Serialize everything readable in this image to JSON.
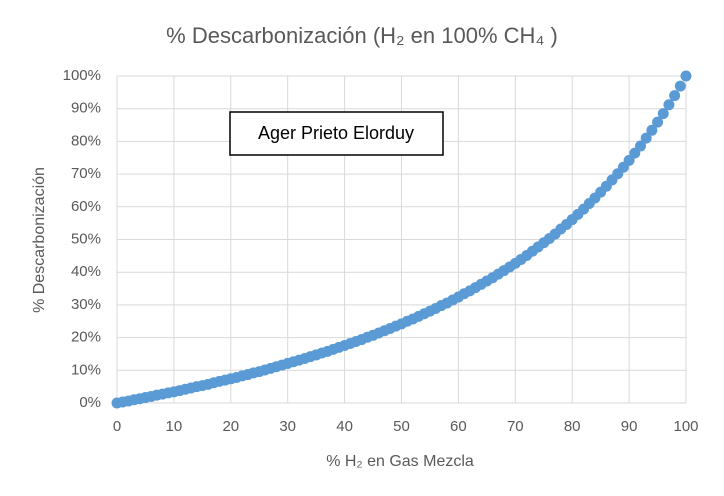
{
  "chart_data": {
    "type": "scatter",
    "title": "% Descarbonización (H₂ en 100% CH₄ )",
    "xlabel": "% H₂ en Gas Mezcla",
    "ylabel": "% Descarbonización",
    "annotation": "Ager Prieto Elorduy",
    "color": "#5b9bd5",
    "grid": true,
    "x": [
      0,
      1,
      2,
      3,
      4,
      5,
      6,
      7,
      8,
      9,
      10,
      11,
      12,
      13,
      14,
      15,
      16,
      17,
      18,
      19,
      20,
      21,
      22,
      23,
      24,
      25,
      26,
      27,
      28,
      29,
      30,
      31,
      32,
      33,
      34,
      35,
      36,
      37,
      38,
      39,
      40,
      41,
      42,
      43,
      44,
      45,
      46,
      47,
      48,
      49,
      50,
      51,
      52,
      53,
      54,
      55,
      56,
      57,
      58,
      59,
      60,
      61,
      62,
      63,
      64,
      65,
      66,
      67,
      68,
      69,
      70,
      71,
      72,
      73,
      74,
      75,
      76,
      77,
      78,
      79,
      80,
      81,
      82,
      83,
      84,
      85,
      86,
      87,
      88,
      89,
      90,
      91,
      92,
      93,
      94,
      95,
      96,
      97,
      98,
      99,
      100
    ],
    "values": [
      0,
      0.3,
      0.6,
      1.0,
      1.3,
      1.7,
      2.0,
      2.4,
      2.7,
      3.1,
      3.4,
      3.8,
      4.2,
      4.6,
      5.0,
      5.3,
      5.7,
      6.2,
      6.6,
      7.0,
      7.4,
      7.8,
      8.3,
      8.7,
      9.2,
      9.6,
      10.1,
      10.6,
      11.1,
      11.6,
      12.1,
      12.6,
      13.1,
      13.6,
      14.2,
      14.7,
      15.3,
      15.8,
      16.4,
      17.0,
      17.6,
      18.2,
      18.8,
      19.4,
      20.1,
      20.7,
      21.4,
      22.1,
      22.8,
      23.5,
      24.2,
      25.0,
      25.7,
      26.5,
      27.3,
      28.1,
      28.9,
      29.8,
      30.6,
      31.5,
      32.4,
      33.4,
      34.3,
      35.3,
      36.3,
      37.3,
      38.3,
      39.4,
      40.5,
      41.6,
      42.7,
      43.9,
      45.1,
      46.4,
      47.7,
      49.0,
      50.3,
      51.7,
      53.2,
      54.6,
      56.1,
      57.7,
      59.3,
      61.0,
      62.7,
      64.5,
      66.3,
      68.2,
      70.1,
      72.1,
      74.2,
      76.4,
      78.6,
      81.0,
      83.4,
      85.9,
      88.5,
      91.2,
      94.0,
      96.9,
      100
    ],
    "xlim": [
      0,
      100
    ],
    "xticks": [
      0,
      10,
      20,
      30,
      40,
      50,
      60,
      70,
      80,
      90,
      100
    ],
    "ylim": [
      0,
      100
    ],
    "yticks": [
      {
        "value": 0,
        "label": "0%"
      },
      {
        "value": 10,
        "label": "10%"
      },
      {
        "value": 20,
        "label": "20%"
      },
      {
        "value": 30,
        "label": "30%"
      },
      {
        "value": 40,
        "label": "40%"
      },
      {
        "value": 50,
        "label": "50%"
      },
      {
        "value": 60,
        "label": "60%"
      },
      {
        "value": 70,
        "label": "70%"
      },
      {
        "value": 80,
        "label": "80%"
      },
      {
        "value": 90,
        "label": "90%"
      },
      {
        "value": 100,
        "label": "100%"
      }
    ]
  }
}
